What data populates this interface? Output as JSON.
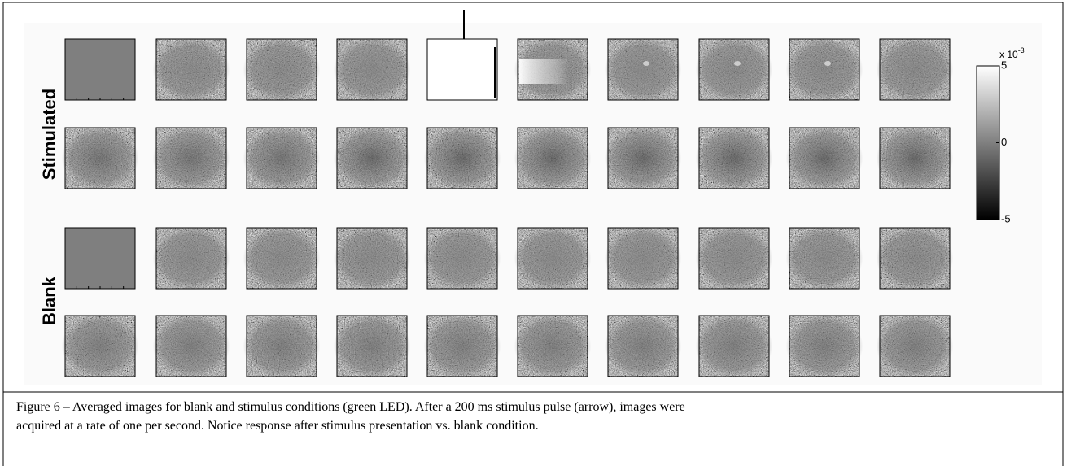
{
  "figure": {
    "row_labels": [
      "Stimulated",
      "Blank"
    ],
    "colorbar": {
      "exponent_base": "x 10",
      "exponent_power": "-3",
      "ylim": [
        -5,
        5
      ],
      "yticks": [
        -5,
        0,
        5
      ]
    },
    "caption_lines": [
      "Figure 6 – Averaged images for blank and stimulus conditions (green LED).  After a 200 ms stimulus pulse (arrow), images were",
      "acquired at a rate of one per second.  Notice response after stimulus presentation vs. blank condition."
    ]
  }
}
